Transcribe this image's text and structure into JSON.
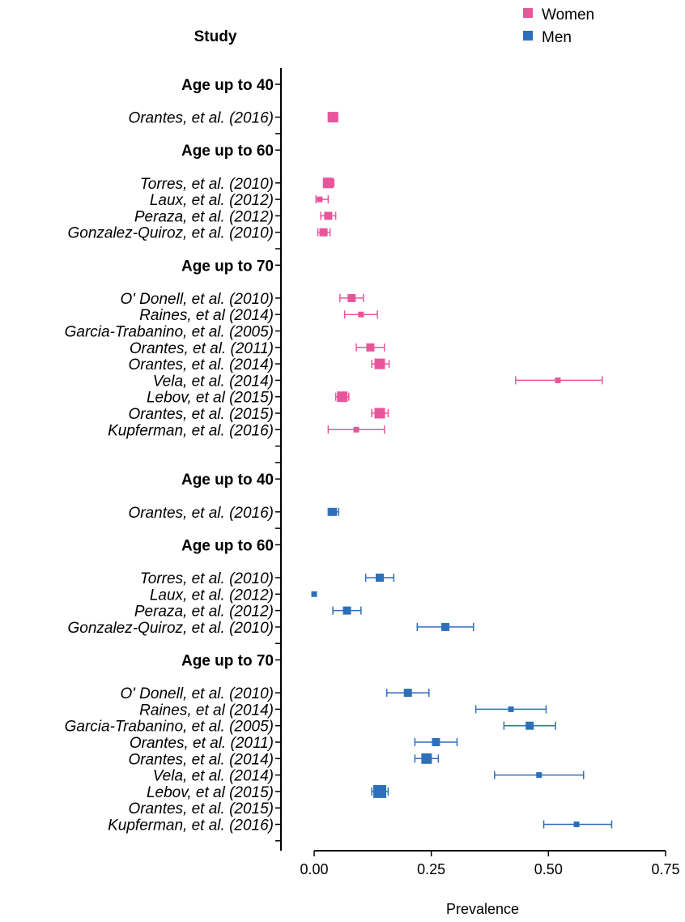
{
  "chart_data": {
    "type": "forest",
    "header": "Study",
    "xlabel": "Prevalence",
    "xlim": [
      0,
      0.75
    ],
    "xticks": [
      "0.00",
      "0.25",
      "0.50",
      "0.75"
    ],
    "legend": {
      "placement": "top-right",
      "entries": [
        {
          "name": "Women",
          "color": "#e8559a"
        },
        {
          "name": "Men",
          "color": "#2e6fba"
        }
      ]
    },
    "series": [
      {
        "name": "Women",
        "color": "#e8559a",
        "groups": [
          {
            "label": "Age up to 40",
            "studies": [
              {
                "study": "Orantes, et al. (2016)",
                "estimate": 0.04,
                "lower": 0.032,
                "upper": 0.05,
                "weight": 3
              }
            ]
          },
          {
            "label": "Age  up to 60",
            "studies": [
              {
                "study": "Torres, et al. (2010)",
                "estimate": 0.03,
                "lower": 0.02,
                "upper": 0.042,
                "weight": 3
              },
              {
                "study": "Laux, et al. (2012)",
                "estimate": 0.012,
                "lower": 0.004,
                "upper": 0.03,
                "weight": 1
              },
              {
                "study": "Peraza, et al. (2012)",
                "estimate": 0.03,
                "lower": 0.014,
                "upper": 0.046,
                "weight": 2
              },
              {
                "study": "Gonzalez-Quiroz, et al. (2010)",
                "estimate": 0.02,
                "lower": 0.008,
                "upper": 0.034,
                "weight": 2
              }
            ]
          },
          {
            "label": "Age  up to 70",
            "studies": [
              {
                "study": "O' Donell, et al. (2010)",
                "estimate": 0.08,
                "lower": 0.055,
                "upper": 0.105,
                "weight": 2
              },
              {
                "study": "Raines, et al (2014)",
                "estimate": 0.1,
                "lower": 0.065,
                "upper": 0.135,
                "weight": 1
              },
              {
                "study": "Garcia-Trabanino, et al. (2005)",
                "estimate": null,
                "lower": null,
                "upper": null,
                "weight": 0
              },
              {
                "study": "Orantes, et al. (2011)",
                "estimate": 0.12,
                "lower": 0.09,
                "upper": 0.15,
                "weight": 2
              },
              {
                "study": "Orantes, et al. (2014)",
                "estimate": 0.14,
                "lower": 0.123,
                "upper": 0.16,
                "weight": 3
              },
              {
                "study": "Vela, et al. (2014)",
                "estimate": 0.52,
                "lower": 0.43,
                "upper": 0.615,
                "weight": 1
              },
              {
                "study": "Lebov, et al (2015)",
                "estimate": 0.06,
                "lower": 0.046,
                "upper": 0.074,
                "weight": 3
              },
              {
                "study": "Orantes,  et al. (2015)",
                "estimate": 0.14,
                "lower": 0.123,
                "upper": 0.158,
                "weight": 3
              },
              {
                "study": "Kupferman, et al. (2016)",
                "estimate": 0.09,
                "lower": 0.03,
                "upper": 0.15,
                "weight": 1
              }
            ]
          }
        ]
      },
      {
        "name": "Men",
        "color": "#2e6fba",
        "groups": [
          {
            "label": "Age up to 40",
            "studies": [
              {
                "study": "Orantes, et al. (2016)",
                "estimate": 0.04,
                "lower": 0.03,
                "upper": 0.052,
                "weight": 2
              }
            ]
          },
          {
            "label": "Age  up to 60",
            "studies": [
              {
                "study": "Torres, et al. (2010)",
                "estimate": 0.14,
                "lower": 0.11,
                "upper": 0.17,
                "weight": 2
              },
              {
                "study": "Laux, et al. (2012)",
                "estimate": 0.0,
                "lower": null,
                "upper": null,
                "weight": 1
              },
              {
                "study": "Peraza, et al. (2012)",
                "estimate": 0.07,
                "lower": 0.04,
                "upper": 0.1,
                "weight": 2
              },
              {
                "study": "Gonzalez-Quiroz, et al. (2010)",
                "estimate": 0.28,
                "lower": 0.22,
                "upper": 0.34,
                "weight": 2
              }
            ]
          },
          {
            "label": "Age  up to 70",
            "studies": [
              {
                "study": "O' Donell, et al. (2010)",
                "estimate": 0.2,
                "lower": 0.155,
                "upper": 0.245,
                "weight": 2
              },
              {
                "study": "Raines, et al (2014)",
                "estimate": 0.42,
                "lower": 0.345,
                "upper": 0.495,
                "weight": 1
              },
              {
                "study": "Garcia-Trabanino, et al. (2005)",
                "estimate": 0.46,
                "lower": 0.405,
                "upper": 0.515,
                "weight": 2
              },
              {
                "study": "Orantes, et al. (2011)",
                "estimate": 0.26,
                "lower": 0.215,
                "upper": 0.305,
                "weight": 2
              },
              {
                "study": "Orantes, et al. (2014)",
                "estimate": 0.24,
                "lower": 0.215,
                "upper": 0.265,
                "weight": 3
              },
              {
                "study": "Vela, et al. (2014)",
                "estimate": 0.48,
                "lower": 0.385,
                "upper": 0.575,
                "weight": 1
              },
              {
                "study": "Lebov, et al (2015)",
                "estimate": 0.14,
                "lower": 0.123,
                "upper": 0.158,
                "weight": 4
              },
              {
                "study": "Orantes,  et al. (2015)",
                "estimate": null,
                "lower": null,
                "upper": null,
                "weight": 0
              },
              {
                "study": "Kupferman, et al. (2016)",
                "estimate": 0.56,
                "lower": 0.49,
                "upper": 0.635,
                "weight": 1
              }
            ]
          }
        ]
      }
    ]
  }
}
